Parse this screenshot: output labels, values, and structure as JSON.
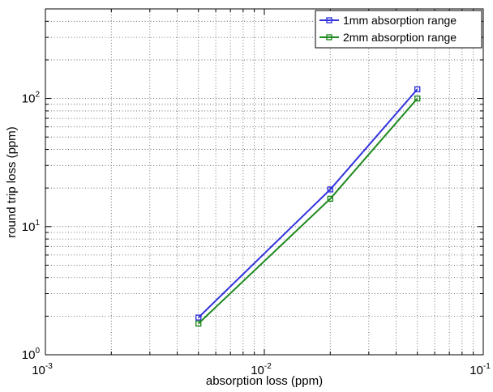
{
  "chart_data": {
    "type": "line",
    "title": "",
    "xlabel": "absorption loss (ppm)",
    "ylabel": "round trip loss (ppm)",
    "xscale": "log",
    "yscale": "log",
    "xlim": [
      0.001,
      0.1
    ],
    "ylim": [
      1,
      500
    ],
    "grid": true,
    "legend_position": "top-right",
    "x_ticks": [
      {
        "base": "10",
        "exp": "-3"
      },
      {
        "base": "10",
        "exp": "-2"
      },
      {
        "base": "10",
        "exp": "-1"
      }
    ],
    "y_ticks": [
      {
        "base": "10",
        "exp": "0"
      },
      {
        "base": "10",
        "exp": "1"
      },
      {
        "base": "10",
        "exp": "2"
      }
    ],
    "series": [
      {
        "name": "1mm absorption range",
        "color": "#3333dd",
        "marker": "square",
        "x": [
          0.005,
          0.02,
          0.05
        ],
        "y": [
          1.95,
          19.5,
          118
        ]
      },
      {
        "name": "2mm absorption range",
        "color": "#1e8a1e",
        "marker": "square",
        "x": [
          0.005,
          0.02,
          0.05
        ],
        "y": [
          1.75,
          16.5,
          100
        ]
      }
    ]
  }
}
